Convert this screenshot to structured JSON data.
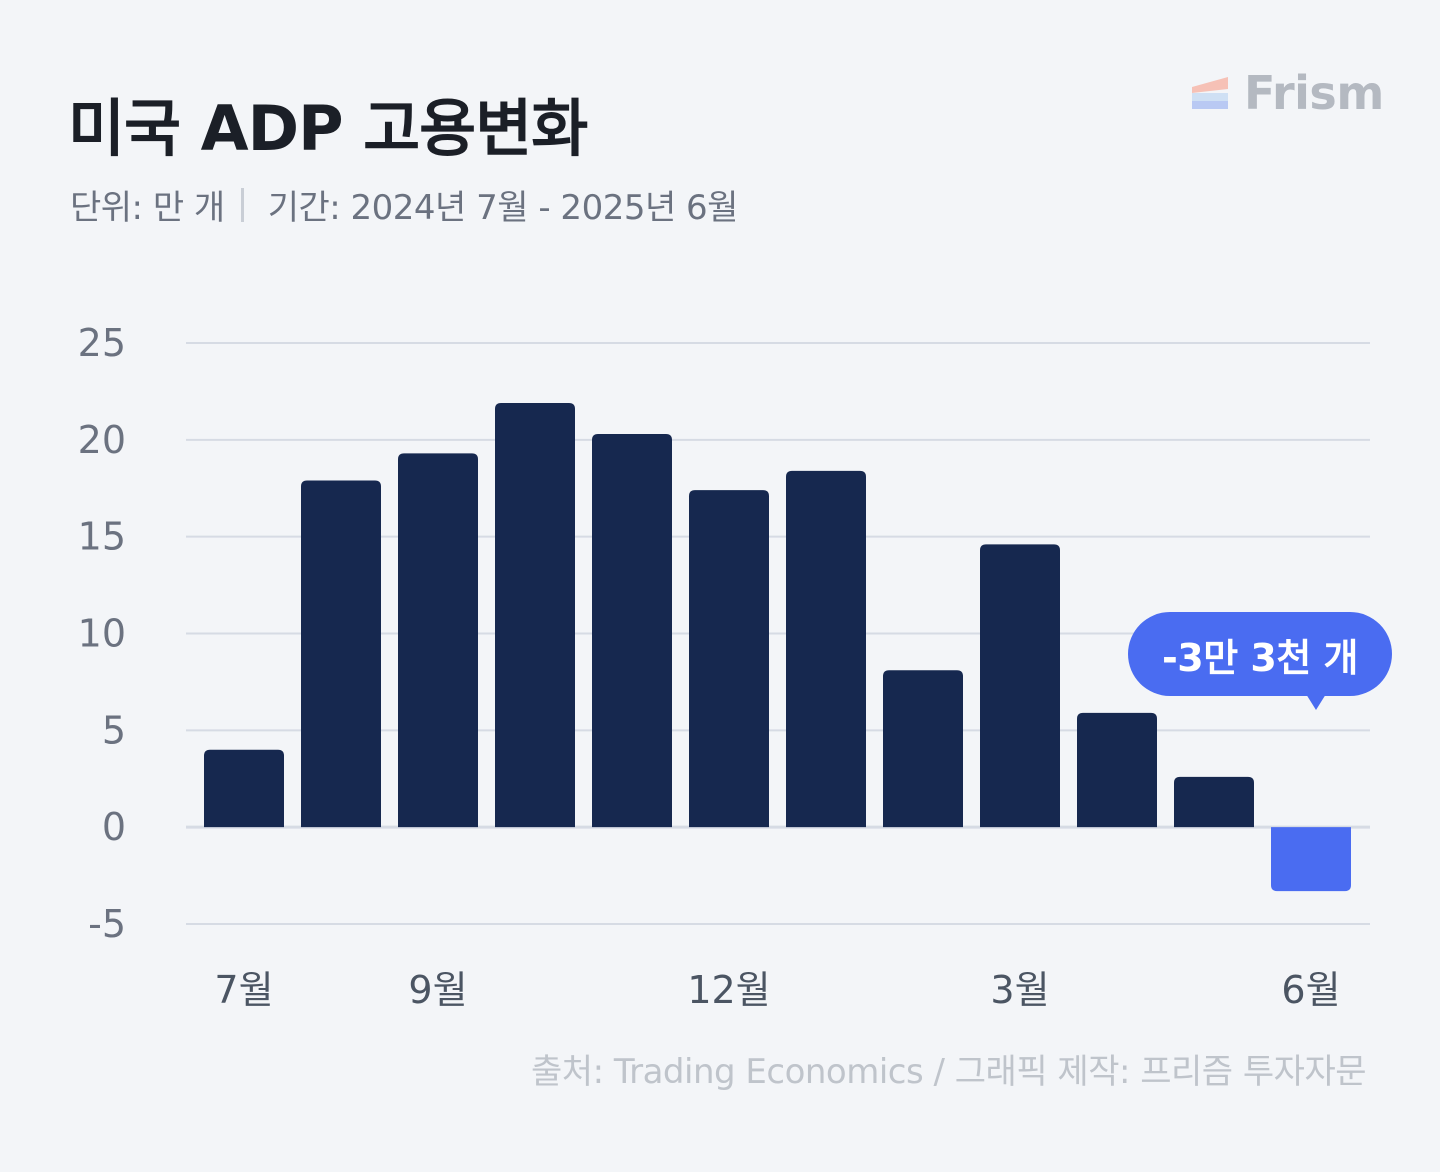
{
  "title": "미국 ADP 고용변화",
  "subtitle": {
    "unit": "단위: 만 개",
    "period": "기간: 2024년 7월 - 2025년 6월"
  },
  "logo": {
    "text": "Frism",
    "icon": "frism-logo-icon"
  },
  "source": "출처: Trading Economics / 그래픽 제작: 프리즘 투자자문",
  "callout": {
    "text": "-3만 3천 개"
  },
  "colors": {
    "bar": "#16284f",
    "highlight": "#4a6cf1",
    "grid": "#d6dbe4",
    "tick": "#6b7280"
  },
  "chart_data": {
    "type": "bar",
    "categories": [
      "2024-07",
      "2024-08",
      "2024-09",
      "2024-10",
      "2024-11",
      "2024-12",
      "2025-01",
      "2025-02",
      "2025-03",
      "2025-04",
      "2025-05",
      "2025-06"
    ],
    "values": [
      4.0,
      17.9,
      19.3,
      21.9,
      20.3,
      17.4,
      18.4,
      8.1,
      14.6,
      5.9,
      2.6,
      -3.3
    ],
    "highlight_index": 11,
    "x_tick_labels": [
      {
        "index": 0,
        "label": "7월"
      },
      {
        "index": 2,
        "label": "9월"
      },
      {
        "index": 5,
        "label": "12월"
      },
      {
        "index": 8,
        "label": "3월"
      },
      {
        "index": 11,
        "label": "6월"
      }
    ],
    "yticks": [
      25,
      20,
      15,
      10,
      5,
      0,
      -5
    ],
    "ylim": [
      -5,
      25
    ],
    "grid": true,
    "ylabel": "",
    "xlabel": ""
  }
}
